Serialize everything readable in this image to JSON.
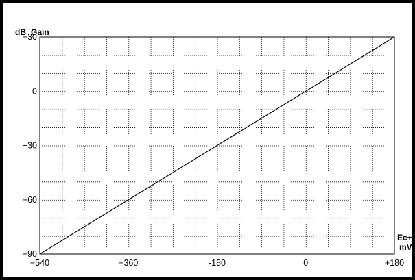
{
  "chart_data": {
    "type": "line",
    "title": "",
    "ylabel_unit": "dB",
    "ylabel": "Gain",
    "xlabel": "Ec+",
    "xlabel_unit": "mV",
    "xlim": [
      -540,
      180
    ],
    "ylim": [
      -90,
      30
    ],
    "x_minor_step": 45,
    "y_minor_step": 10,
    "x_ticks": [
      -540,
      -360,
      -180,
      0,
      180
    ],
    "x_tick_labels": [
      "−540",
      "−360",
      "-180",
      "0",
      "+180"
    ],
    "y_ticks": [
      30,
      0,
      -30,
      -60,
      -90
    ],
    "y_tick_labels": [
      "+30",
      "0",
      "−30",
      "−60",
      "−90"
    ],
    "grid": true,
    "series": [
      {
        "x": [
          -540,
          180
        ],
        "y": [
          -90,
          30
        ],
        "color": "#000000"
      }
    ]
  }
}
